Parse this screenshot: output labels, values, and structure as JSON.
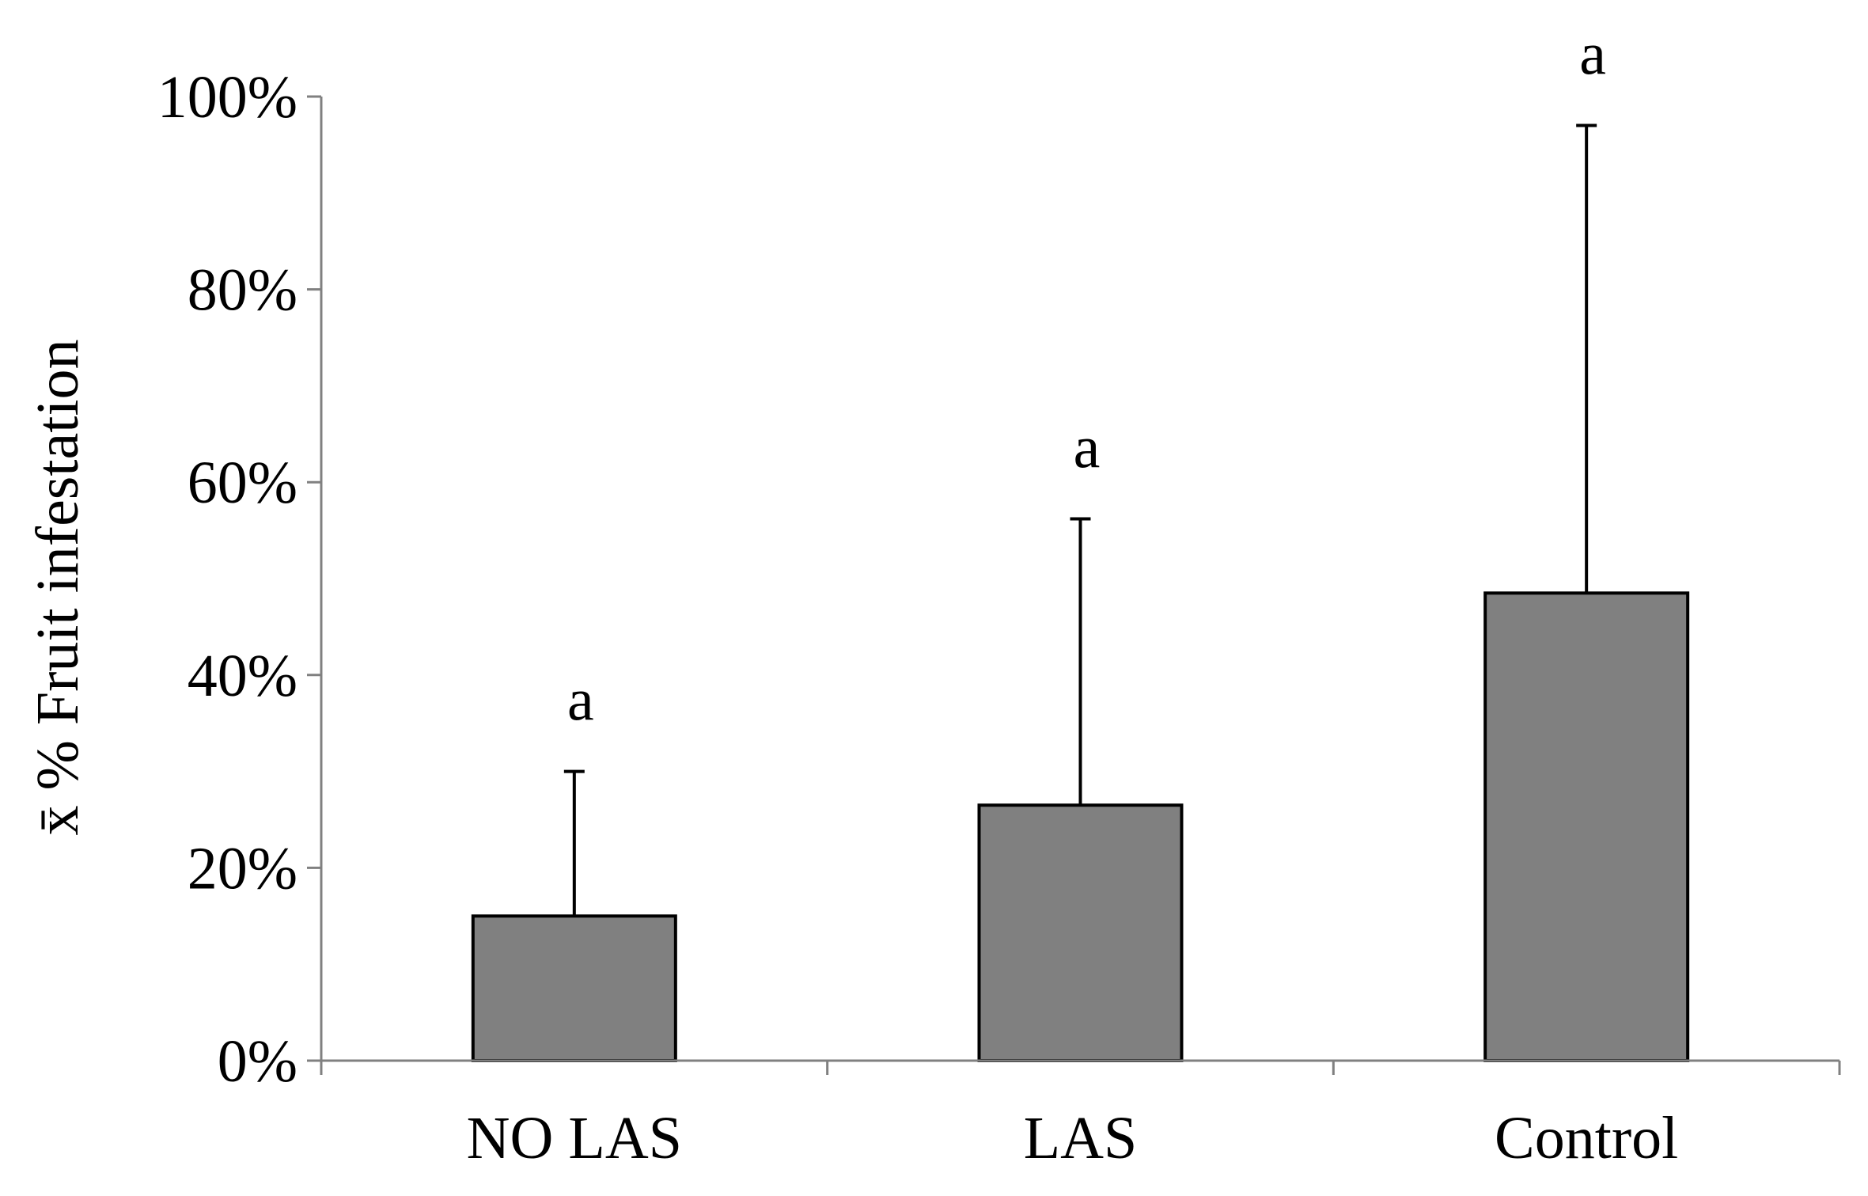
{
  "chart_data": {
    "type": "bar",
    "title": "",
    "xlabel": "",
    "ylabel": "x̄ % Fruit infestation",
    "categories": [
      "NO LAS",
      "LAS",
      "Control"
    ],
    "values": [
      15,
      26.5,
      48.5
    ],
    "error_upper": [
      30,
      56.2,
      97
    ],
    "significance_letters": [
      "a",
      "a",
      "a"
    ],
    "ylim": [
      0,
      100
    ],
    "y_ticks": [
      0,
      20,
      40,
      60,
      80,
      100
    ],
    "y_tick_labels": [
      "0%",
      "20%",
      "40%",
      "60%",
      "80%",
      "100%"
    ],
    "grid": false,
    "legend": "none",
    "bar_color": "#808080",
    "bar_edge_color": "#000000",
    "axis_color": "#808080"
  }
}
